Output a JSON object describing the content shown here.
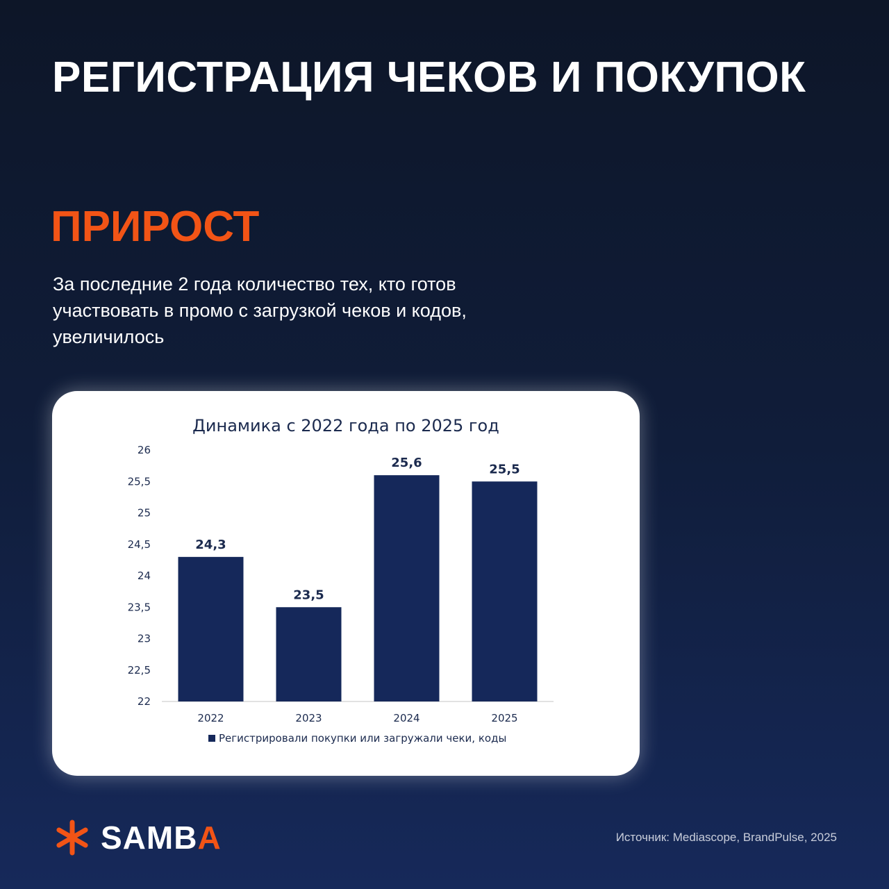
{
  "headline": "РЕГИСТРАЦИЯ ЧЕКОВ И ПОКУПОК",
  "accent_title": "ПРИРОСТ",
  "description": "За последние 2 года количество тех, кто готов участвовать в промо с загрузкой чеков и кодов, увеличилось",
  "logo": {
    "text_main": "SAMB",
    "text_accent": "A",
    "icon": "asterisk-icon"
  },
  "source": "Источник: Mediascope, BrandPulse, 2025",
  "colors": {
    "accent": "#f25416",
    "bar": "#15285a",
    "background": "#0f1a33"
  },
  "chart_data": {
    "type": "bar",
    "title": "Динамика с 2022 года по 2025 год",
    "categories": [
      "2022",
      "2023",
      "2024",
      "2025"
    ],
    "series": [
      {
        "name": "Регистрировали покупки или загружали чеки, коды",
        "values": [
          24.3,
          23.5,
          25.6,
          25.5
        ]
      }
    ],
    "data_labels": [
      "24,3",
      "23,5",
      "25,6",
      "25,5"
    ],
    "ylim": [
      22,
      26
    ],
    "yticks": [
      22,
      22.5,
      23,
      23.5,
      24,
      24.5,
      25,
      25.5,
      26
    ],
    "ytick_labels": [
      "22",
      "22,5",
      "23",
      "23,5",
      "24",
      "24,5",
      "25",
      "25,5",
      "26"
    ],
    "xlabel": "",
    "ylabel": "",
    "grid": false,
    "legend": "bottom"
  }
}
